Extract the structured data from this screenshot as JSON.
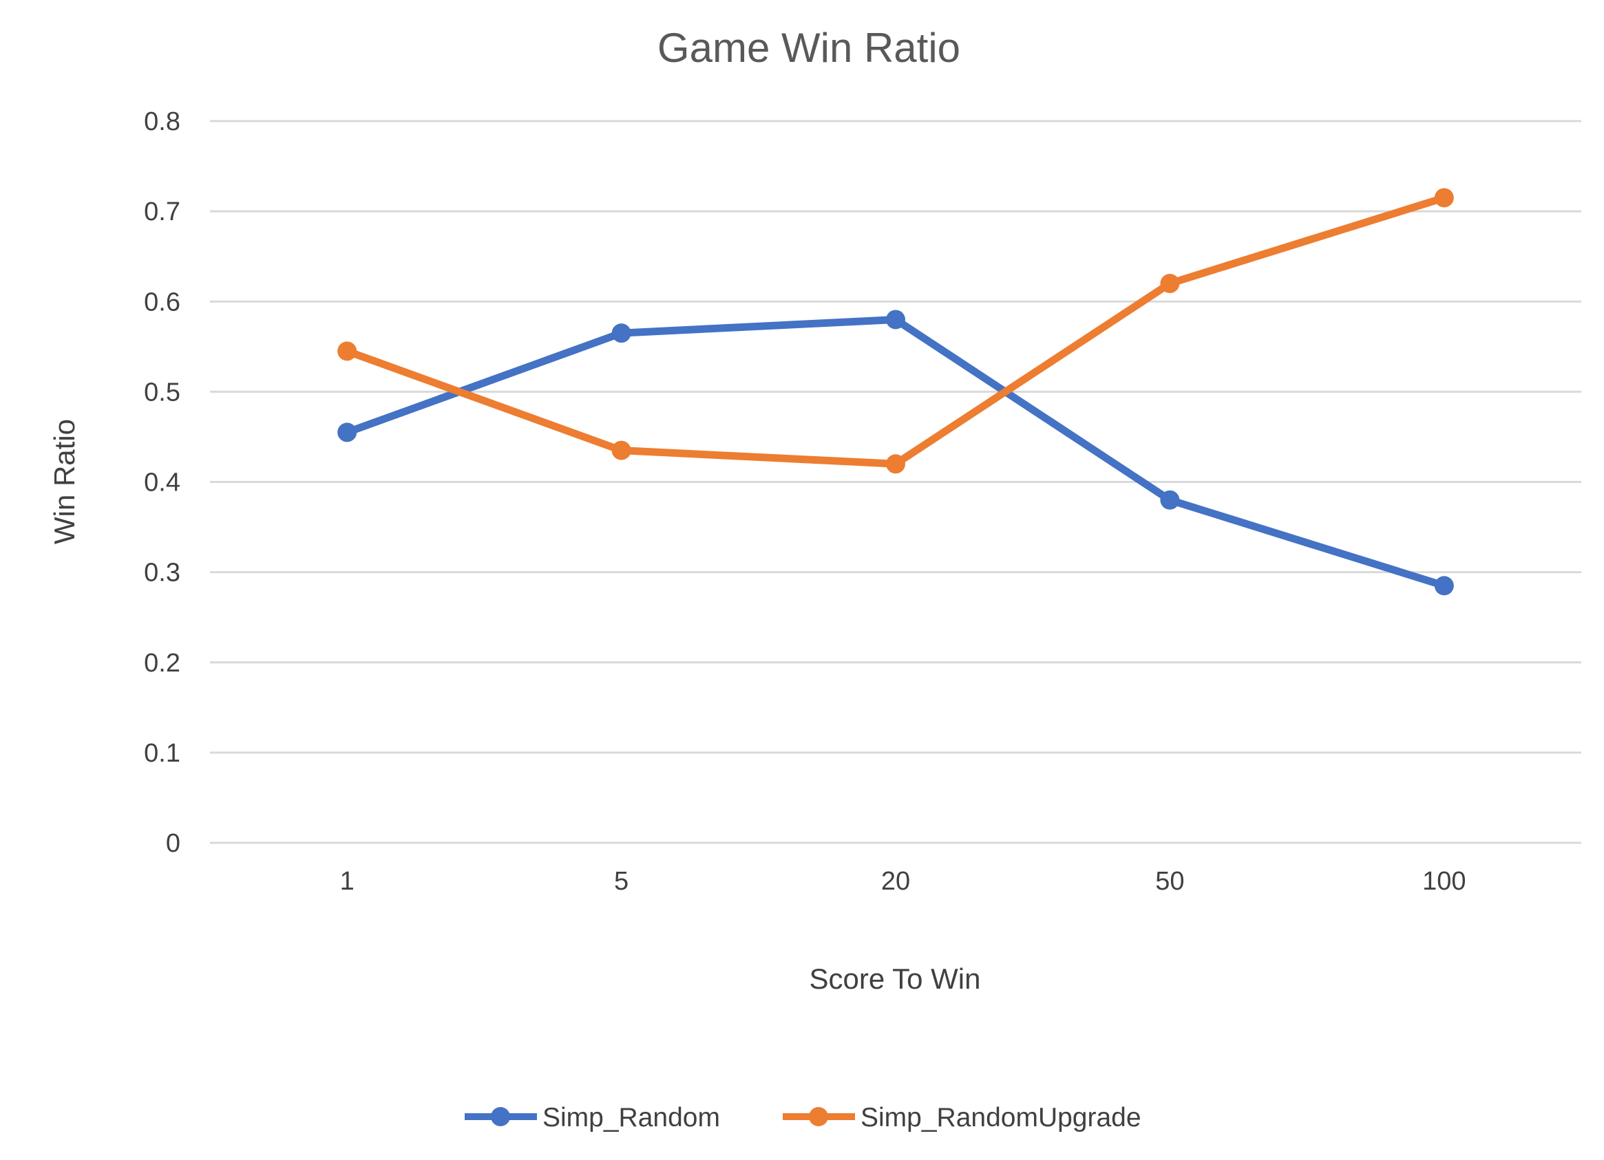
{
  "chart_data": {
    "type": "line",
    "title": "Game Win Ratio",
    "xlabel": "Score To Win",
    "ylabel": "Win Ratio",
    "categories": [
      "1",
      "5",
      "20",
      "50",
      "100"
    ],
    "series": [
      {
        "name": "Simp_Random",
        "color": "#4472c4",
        "values": [
          0.455,
          0.565,
          0.58,
          0.38,
          0.285
        ]
      },
      {
        "name": "Simp_RandomUpgrade",
        "color": "#ed7d31",
        "values": [
          0.545,
          0.435,
          0.42,
          0.62,
          0.715
        ]
      }
    ],
    "ylim": [
      0,
      0.8
    ],
    "yticks": [
      "0",
      "0.1",
      "0.2",
      "0.3",
      "0.4",
      "0.5",
      "0.6",
      "0.7",
      "0.8"
    ],
    "grid": true,
    "legend_position": "bottom",
    "marker": "circle"
  }
}
